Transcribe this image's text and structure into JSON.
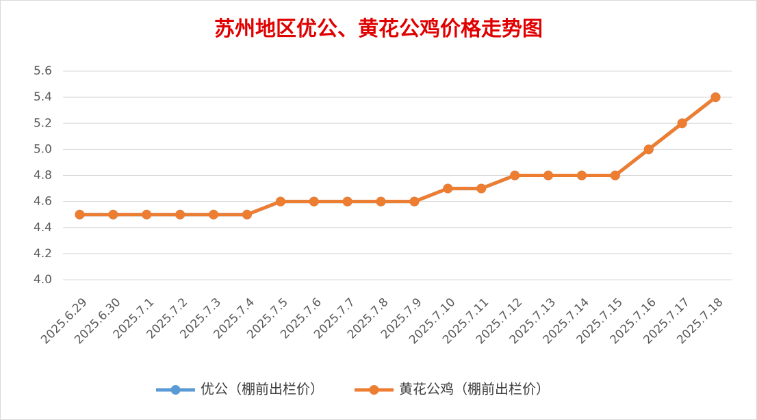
{
  "chart_data": {
    "type": "line",
    "title": "苏州地区优公、黄花公鸡价格走势图",
    "categories": [
      "2025.6.29",
      "2025.6.30",
      "2025.7.1",
      "2025.7.2",
      "2025.7.3",
      "2025.7.4",
      "2025.7.5",
      "2025.7.6",
      "2025.7.7",
      "2025.7.8",
      "2025.7.9",
      "2025.7.10",
      "2025.7.11",
      "2025.7.12",
      "2025.7.13",
      "2025.7.14",
      "2025.7.15",
      "2025.7.16",
      "2025.7.17",
      "2025.7.18"
    ],
    "series": [
      {
        "name": "优公（棚前出栏价）",
        "color": "#5b9bd5",
        "values": [
          4.5,
          4.5,
          4.5,
          4.5,
          4.5,
          4.5,
          4.6,
          4.6,
          4.6,
          4.6,
          4.6,
          4.7,
          4.7,
          4.8,
          4.8,
          4.8,
          4.8,
          5.0,
          5.2,
          5.4
        ]
      },
      {
        "name": "黄花公鸡（棚前出栏价）",
        "color": "#ed7d31",
        "values": [
          4.5,
          4.5,
          4.5,
          4.5,
          4.5,
          4.5,
          4.6,
          4.6,
          4.6,
          4.6,
          4.6,
          4.7,
          4.7,
          4.8,
          4.8,
          4.8,
          4.8,
          5.0,
          5.2,
          5.4
        ]
      }
    ],
    "ylim": [
      4,
      5.6
    ],
    "yticks": [
      {
        "value": 4,
        "label": "4.0"
      },
      4.2,
      4.4,
      4.6,
      4.8,
      {
        "value": 5,
        "label": "5.0"
      },
      5.2,
      5.4,
      5.6
    ],
    "grid": true,
    "legend": "bottom"
  }
}
